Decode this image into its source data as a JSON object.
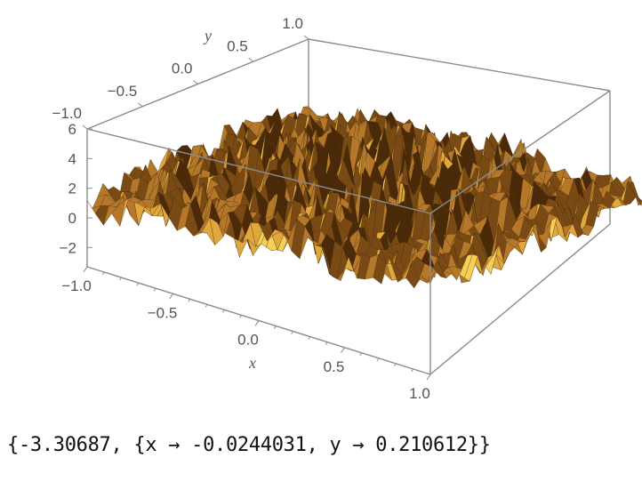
{
  "chart_data": {
    "type": "surface3d",
    "title": "",
    "x_axis": {
      "label": "x",
      "range": [
        -1.0,
        1.0
      ],
      "ticks": [
        "−1.0",
        "−0.5",
        "0.0",
        "0.5",
        "1.0"
      ]
    },
    "y_axis": {
      "label": "y",
      "range": [
        -1.0,
        1.0
      ],
      "ticks": [
        "−1.0",
        "−0.5",
        "0.0",
        "0.5",
        "1.0"
      ]
    },
    "z_axis": {
      "label": "",
      "range": [
        -3.3,
        6.0
      ],
      "ticks": [
        "6",
        "4",
        "2",
        "0",
        "−2"
      ]
    },
    "surface_color": "#c48a2a",
    "surface_colors": [
      "#4a2a08",
      "#7a4a14",
      "#b5782a",
      "#e0a83c",
      "#f5cf58"
    ],
    "box_color": "#888888",
    "minimum": {
      "value": -3.30687,
      "x": -0.0244031,
      "y": 0.210612
    }
  },
  "output": {
    "text": "{-3.30687, {x → -0.0244031, y → 0.210612}}"
  }
}
